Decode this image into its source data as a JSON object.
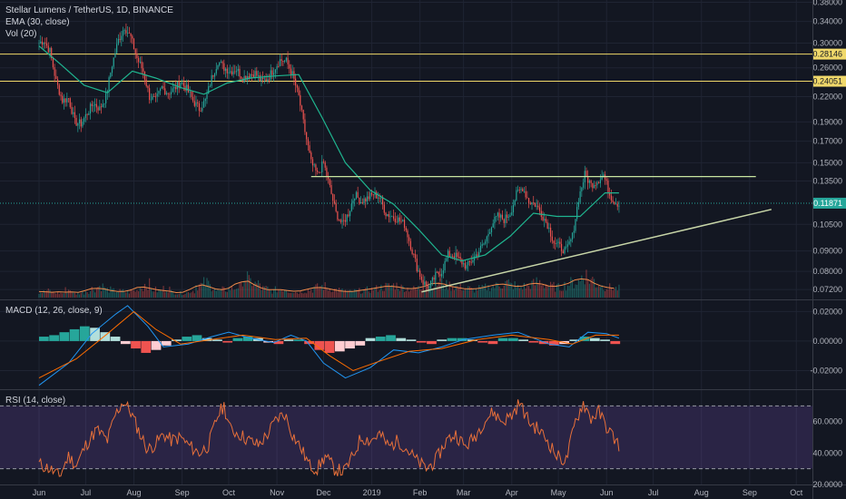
{
  "chart_data": [
    {
      "type": "candlestick",
      "title": "Stellar Lumens / TetherUS, 1D, BINANCE",
      "indicators_legend": [
        "EMA (30, close)",
        "Vol (20)"
      ],
      "yaxis_ticks": [
        "0.38000",
        "0.34000",
        "0.30000",
        "0.28146",
        "0.26000",
        "0.24051",
        "0.22000",
        "0.19000",
        "0.17000",
        "0.15000",
        "0.13500",
        "0.11871",
        "0.10500",
        "0.09000",
        "0.08000",
        "0.07200"
      ],
      "ylim": [
        0.068,
        0.385
      ],
      "y_scale": "log",
      "horizontal_levels": [
        {
          "value": 0.28146,
          "label": "0.28146",
          "color": "#f0d86a"
        },
        {
          "value": 0.24051,
          "label": "0.24051",
          "color": "#f0d86a"
        }
      ],
      "last_price": {
        "value": 0.11871,
        "label": "0.11871",
        "color": "#26a69a"
      },
      "resistance_line": {
        "from": [
          "2018-11-23",
          0.1385
        ],
        "to": [
          "2019-09-05",
          0.1385
        ]
      },
      "trend_line": {
        "from": [
          "2019-02-02",
          0.071
        ],
        "to": [
          "2019-09-15",
          0.1145
        ]
      },
      "xaxis_ticks": [
        "Jun",
        "Jul",
        "Aug",
        "Sep",
        "Oct",
        "Nov",
        "Dec",
        "2019",
        "Feb",
        "Mar",
        "Apr",
        "May",
        "Jun",
        "Jul",
        "Aug",
        "Sep",
        "Oct"
      ],
      "close_path": [
        [
          "2018-06-01",
          0.3
        ],
        [
          "2018-06-04",
          0.305
        ],
        [
          "2018-06-08",
          0.286
        ],
        [
          "2018-06-12",
          0.24
        ],
        [
          "2018-06-16",
          0.215
        ],
        [
          "2018-06-20",
          0.218
        ],
        [
          "2018-06-24",
          0.19
        ],
        [
          "2018-06-28",
          0.188
        ],
        [
          "2018-07-02",
          0.2
        ],
        [
          "2018-07-06",
          0.212
        ],
        [
          "2018-07-10",
          0.205
        ],
        [
          "2018-07-14",
          0.22
        ],
        [
          "2018-07-18",
          0.265
        ],
        [
          "2018-07-22",
          0.305
        ],
        [
          "2018-07-26",
          0.33
        ],
        [
          "2018-07-30",
          0.31
        ],
        [
          "2018-08-03",
          0.275
        ],
        [
          "2018-08-07",
          0.255
        ],
        [
          "2018-08-11",
          0.22
        ],
        [
          "2018-08-15",
          0.215
        ],
        [
          "2018-08-19",
          0.232
        ],
        [
          "2018-08-23",
          0.225
        ],
        [
          "2018-08-27",
          0.23
        ],
        [
          "2018-08-31",
          0.24
        ],
        [
          "2018-09-04",
          0.23
        ],
        [
          "2018-09-08",
          0.215
        ],
        [
          "2018-09-12",
          0.205
        ],
        [
          "2018-09-16",
          0.215
        ],
        [
          "2018-09-20",
          0.245
        ],
        [
          "2018-09-24",
          0.27
        ],
        [
          "2018-09-28",
          0.26
        ],
        [
          "2018-10-02",
          0.255
        ],
        [
          "2018-10-06",
          0.258
        ],
        [
          "2018-10-10",
          0.245
        ],
        [
          "2018-10-14",
          0.25
        ],
        [
          "2018-10-18",
          0.252
        ],
        [
          "2018-10-22",
          0.24
        ],
        [
          "2018-10-26",
          0.245
        ],
        [
          "2018-10-30",
          0.258
        ],
        [
          "2018-11-03",
          0.272
        ],
        [
          "2018-11-07",
          0.27
        ],
        [
          "2018-11-11",
          0.25
        ],
        [
          "2018-11-15",
          0.22
        ],
        [
          "2018-11-19",
          0.18
        ],
        [
          "2018-11-23",
          0.15
        ],
        [
          "2018-11-27",
          0.14
        ],
        [
          "2018-12-01",
          0.15
        ],
        [
          "2018-12-05",
          0.13
        ],
        [
          "2018-12-09",
          0.112
        ],
        [
          "2018-12-13",
          0.105
        ],
        [
          "2018-12-17",
          0.112
        ],
        [
          "2018-12-21",
          0.125
        ],
        [
          "2018-12-25",
          0.12
        ],
        [
          "2018-12-29",
          0.122
        ],
        [
          "2019-01-02",
          0.125
        ],
        [
          "2019-01-06",
          0.123
        ],
        [
          "2019-01-10",
          0.112
        ],
        [
          "2019-01-14",
          0.11
        ],
        [
          "2019-01-18",
          0.108
        ],
        [
          "2019-01-22",
          0.105
        ],
        [
          "2019-01-26",
          0.093
        ],
        [
          "2019-01-30",
          0.082
        ],
        [
          "2019-02-03",
          0.075
        ],
        [
          "2019-02-07",
          0.073
        ],
        [
          "2019-02-11",
          0.078
        ],
        [
          "2019-02-15",
          0.08
        ],
        [
          "2019-02-19",
          0.088
        ],
        [
          "2019-02-23",
          0.088
        ],
        [
          "2019-02-27",
          0.085
        ],
        [
          "2019-03-03",
          0.082
        ],
        [
          "2019-03-07",
          0.086
        ],
        [
          "2019-03-11",
          0.09
        ],
        [
          "2019-03-15",
          0.095
        ],
        [
          "2019-03-19",
          0.105
        ],
        [
          "2019-03-23",
          0.11
        ],
        [
          "2019-03-27",
          0.108
        ],
        [
          "2019-03-31",
          0.112
        ],
        [
          "2019-04-04",
          0.125
        ],
        [
          "2019-04-08",
          0.13
        ],
        [
          "2019-04-12",
          0.12
        ],
        [
          "2019-04-16",
          0.118
        ],
        [
          "2019-04-20",
          0.112
        ],
        [
          "2019-04-24",
          0.105
        ],
        [
          "2019-04-28",
          0.095
        ],
        [
          "2019-05-02",
          0.092
        ],
        [
          "2019-05-06",
          0.09
        ],
        [
          "2019-05-10",
          0.098
        ],
        [
          "2019-05-14",
          0.122
        ],
        [
          "2019-05-18",
          0.14
        ],
        [
          "2019-05-22",
          0.132
        ],
        [
          "2019-05-26",
          0.135
        ],
        [
          "2019-05-30",
          0.14
        ],
        [
          "2019-06-03",
          0.125
        ],
        [
          "2019-06-06",
          0.12
        ],
        [
          "2019-06-09",
          0.118
        ]
      ],
      "ema_30": [
        [
          "2018-06-01",
          0.295
        ],
        [
          "2018-06-15",
          0.265
        ],
        [
          "2018-06-30",
          0.235
        ],
        [
          "2018-07-15",
          0.225
        ],
        [
          "2018-07-31",
          0.255
        ],
        [
          "2018-08-15",
          0.245
        ],
        [
          "2018-08-31",
          0.232
        ],
        [
          "2018-09-15",
          0.223
        ],
        [
          "2018-09-30",
          0.238
        ],
        [
          "2018-10-15",
          0.245
        ],
        [
          "2018-10-31",
          0.248
        ],
        [
          "2018-11-15",
          0.25
        ],
        [
          "2018-11-30",
          0.195
        ],
        [
          "2018-12-15",
          0.15
        ],
        [
          "2018-12-31",
          0.128
        ],
        [
          "2019-01-15",
          0.118
        ],
        [
          "2019-01-31",
          0.102
        ],
        [
          "2019-02-15",
          0.088
        ],
        [
          "2019-02-28",
          0.085
        ],
        [
          "2019-03-15",
          0.088
        ],
        [
          "2019-03-31",
          0.098
        ],
        [
          "2019-04-15",
          0.112
        ],
        [
          "2019-04-30",
          0.11
        ],
        [
          "2019-05-15",
          0.11
        ],
        [
          "2019-05-31",
          0.126
        ],
        [
          "2019-06-09",
          0.126
        ]
      ],
      "volume_relative": [
        0.25,
        0.3,
        0.22,
        0.2,
        0.35,
        0.18,
        0.22,
        0.3,
        0.4,
        0.5,
        0.35,
        0.3,
        0.28,
        0.25,
        0.3,
        0.45,
        0.6,
        0.35,
        0.3,
        0.4,
        0.25,
        0.2,
        0.22,
        0.3,
        0.55,
        0.65,
        0.5,
        0.3,
        0.35,
        0.4,
        0.5,
        0.9,
        0.7,
        0.6,
        0.4,
        0.3,
        0.35,
        0.4,
        0.3,
        0.25,
        0.3,
        0.35,
        0.45,
        0.5,
        0.4,
        0.35,
        0.3,
        0.25,
        0.28,
        0.3,
        0.35,
        0.4,
        0.45,
        0.5,
        0.55,
        0.45,
        0.4,
        0.38,
        0.42,
        0.5,
        0.6,
        0.75,
        0.55,
        0.5,
        0.45,
        0.4,
        0.35,
        0.4,
        0.45,
        0.5,
        0.6,
        0.65,
        0.55,
        0.45,
        0.5,
        0.6,
        0.7,
        0.6,
        0.5,
        0.45,
        0.55,
        0.65,
        0.7,
        1.0,
        0.8,
        0.6,
        0.5,
        0.45,
        0.4
      ]
    },
    {
      "type": "line",
      "title": "MACD (12, 26, close, 9)",
      "yaxis_ticks": [
        "0.02000",
        "0.00000",
        "-0.02000"
      ],
      "ylim": [
        -0.032,
        0.027
      ],
      "macd": [
        [
          "2018-06-01",
          -0.03
        ],
        [
          "2018-06-20",
          -0.015
        ],
        [
          "2018-07-05",
          0.005
        ],
        [
          "2018-07-20",
          0.018
        ],
        [
          "2018-07-28",
          0.024
        ],
        [
          "2018-08-10",
          0.01
        ],
        [
          "2018-08-20",
          -0.004
        ],
        [
          "2018-09-05",
          -0.002
        ],
        [
          "2018-09-20",
          0.003
        ],
        [
          "2018-10-01",
          0.006
        ],
        [
          "2018-10-15",
          0.002
        ],
        [
          "2018-10-30",
          -0.001
        ],
        [
          "2018-11-10",
          0.004
        ],
        [
          "2018-11-20",
          0.0
        ],
        [
          "2018-12-01",
          -0.015
        ],
        [
          "2018-12-15",
          -0.025
        ],
        [
          "2018-12-31",
          -0.018
        ],
        [
          "2019-01-15",
          -0.006
        ],
        [
          "2019-01-31",
          -0.008
        ],
        [
          "2019-02-15",
          -0.004
        ],
        [
          "2019-03-01",
          0.001
        ],
        [
          "2019-03-20",
          0.004
        ],
        [
          "2019-04-05",
          0.006
        ],
        [
          "2019-04-25",
          -0.002
        ],
        [
          "2019-05-08",
          -0.004
        ],
        [
          "2019-05-20",
          0.006
        ],
        [
          "2019-06-01",
          0.005
        ],
        [
          "2019-06-09",
          0.002
        ]
      ],
      "signal": [
        [
          "2018-06-01",
          -0.025
        ],
        [
          "2018-06-25",
          -0.012
        ],
        [
          "2018-07-15",
          0.005
        ],
        [
          "2018-08-01",
          0.02
        ],
        [
          "2018-08-15",
          0.008
        ],
        [
          "2018-08-31",
          -0.002
        ],
        [
          "2018-09-20",
          0.001
        ],
        [
          "2018-10-10",
          0.004
        ],
        [
          "2018-10-31",
          0.001
        ],
        [
          "2018-11-20",
          0.002
        ],
        [
          "2018-12-05",
          -0.01
        ],
        [
          "2018-12-20",
          -0.02
        ],
        [
          "2019-01-05",
          -0.014
        ],
        [
          "2019-01-25",
          -0.007
        ],
        [
          "2019-02-15",
          -0.005
        ],
        [
          "2019-03-10",
          0.001
        ],
        [
          "2019-04-01",
          0.004
        ],
        [
          "2019-04-25",
          0.001
        ],
        [
          "2019-05-10",
          -0.002
        ],
        [
          "2019-05-25",
          0.004
        ],
        [
          "2019-06-09",
          0.004
        ]
      ],
      "histogram": [
        0.003,
        0.004,
        0.006,
        0.008,
        0.01,
        0.009,
        0.006,
        0.003,
        -0.002,
        -0.005,
        -0.008,
        -0.006,
        -0.003,
        0.001,
        0.003,
        0.004,
        0.002,
        0.001,
        -0.001,
        0.002,
        0.003,
        0.002,
        -0.001,
        -0.002,
        0.001,
        0.001,
        -0.002,
        -0.006,
        -0.008,
        -0.007,
        -0.005,
        -0.003,
        0.002,
        0.003,
        0.004,
        0.002,
        0.001,
        -0.001,
        -0.002,
        0.001,
        0.002,
        0.002,
        0.001,
        -0.001,
        -0.002,
        0.002,
        0.002,
        0.001,
        -0.001,
        -0.002,
        -0.003,
        -0.002,
        0.001,
        0.003,
        0.002,
        0.001,
        -0.002
      ]
    },
    {
      "type": "line",
      "title": "RSI (14, close)",
      "yaxis_ticks": [
        "60.0000",
        "40.0000",
        "20.0000"
      ],
      "ylim": [
        20,
        80
      ],
      "band": [
        30,
        70
      ],
      "rsi": [
        [
          "2018-06-01",
          33
        ],
        [
          "2018-06-08",
          30
        ],
        [
          "2018-06-14",
          25
        ],
        [
          "2018-06-20",
          38
        ],
        [
          "2018-06-25",
          32
        ],
        [
          "2018-07-01",
          45
        ],
        [
          "2018-07-08",
          55
        ],
        [
          "2018-07-15",
          48
        ],
        [
          "2018-07-20",
          64
        ],
        [
          "2018-07-25",
          73
        ],
        [
          "2018-07-30",
          66
        ],
        [
          "2018-08-05",
          52
        ],
        [
          "2018-08-10",
          42
        ],
        [
          "2018-08-15",
          46
        ],
        [
          "2018-08-20",
          52
        ],
        [
          "2018-08-25",
          48
        ],
        [
          "2018-08-31",
          50
        ],
        [
          "2018-09-05",
          45
        ],
        [
          "2018-09-12",
          40
        ],
        [
          "2018-09-18",
          45
        ],
        [
          "2018-09-24",
          64
        ],
        [
          "2018-09-28",
          70
        ],
        [
          "2018-10-02",
          55
        ],
        [
          "2018-10-08",
          52
        ],
        [
          "2018-10-14",
          48
        ],
        [
          "2018-10-20",
          45
        ],
        [
          "2018-10-26",
          52
        ],
        [
          "2018-11-01",
          62
        ],
        [
          "2018-11-06",
          65
        ],
        [
          "2018-11-11",
          52
        ],
        [
          "2018-11-17",
          42
        ],
        [
          "2018-11-22",
          32
        ],
        [
          "2018-11-27",
          30
        ],
        [
          "2018-12-02",
          38
        ],
        [
          "2018-12-08",
          30
        ],
        [
          "2018-12-14",
          28
        ],
        [
          "2018-12-20",
          38
        ],
        [
          "2018-12-25",
          50
        ],
        [
          "2018-12-31",
          48
        ],
        [
          "2019-01-06",
          52
        ],
        [
          "2019-01-12",
          44
        ],
        [
          "2019-01-18",
          48
        ],
        [
          "2019-01-24",
          42
        ],
        [
          "2019-01-30",
          35
        ],
        [
          "2019-02-05",
          30
        ],
        [
          "2019-02-11",
          35
        ],
        [
          "2019-02-18",
          48
        ],
        [
          "2019-02-24",
          52
        ],
        [
          "2019-03-02",
          44
        ],
        [
          "2019-03-08",
          50
        ],
        [
          "2019-03-14",
          60
        ],
        [
          "2019-03-20",
          66
        ],
        [
          "2019-03-26",
          60
        ],
        [
          "2019-04-01",
          64
        ],
        [
          "2019-04-06",
          72
        ],
        [
          "2019-04-12",
          60
        ],
        [
          "2019-04-18",
          55
        ],
        [
          "2019-04-24",
          48
        ],
        [
          "2019-04-30",
          38
        ],
        [
          "2019-05-06",
          35
        ],
        [
          "2019-05-12",
          60
        ],
        [
          "2019-05-17",
          72
        ],
        [
          "2019-05-22",
          62
        ],
        [
          "2019-05-27",
          66
        ],
        [
          "2019-06-02",
          55
        ],
        [
          "2019-06-09",
          45
        ]
      ]
    }
  ]
}
